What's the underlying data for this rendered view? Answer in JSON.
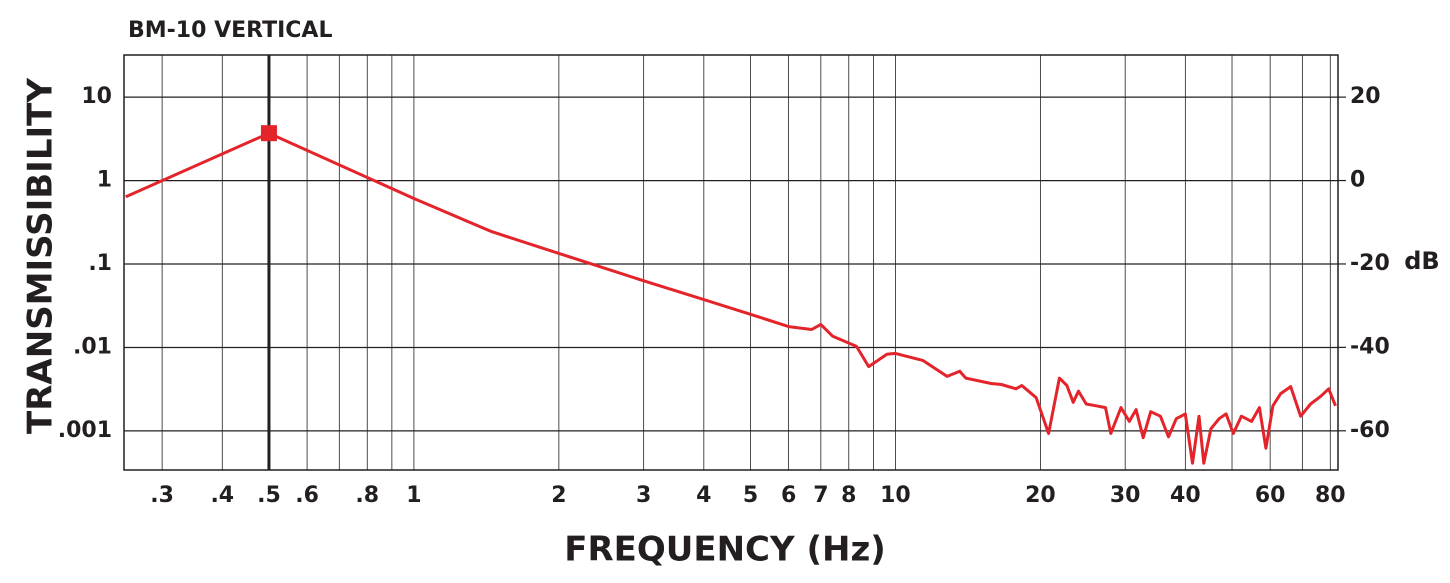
{
  "chart_data": {
    "type": "line",
    "title": "BM-10 VERTICAL",
    "xlabel": "FREQUENCY (Hz)",
    "ylabel": "TRANSMISSIBILITY",
    "y2label": "dB",
    "xscale": "log",
    "yscale": "log",
    "grid": true,
    "xlim": [
      0.25,
      83
    ],
    "ylim": [
      0.00034,
      32
    ],
    "y2lim": [
      -69.4,
      30.1
    ],
    "xticks": [
      {
        "value": 0.3,
        "label": ".3"
      },
      {
        "value": 0.4,
        "label": ".4"
      },
      {
        "value": 0.5,
        "label": ".5"
      },
      {
        "value": 0.6,
        "label": ".6"
      },
      {
        "value": 0.8,
        "label": ".8"
      },
      1,
      2,
      3,
      4,
      5,
      6,
      7,
      8,
      10,
      20,
      30,
      40,
      60,
      80
    ],
    "xminor": [
      0.7,
      0.9,
      9,
      50,
      70
    ],
    "yticks": [
      10,
      1,
      {
        "value": 0.1,
        "label": ".1"
      },
      {
        "value": 0.01,
        "label": ".01"
      },
      {
        "value": 0.001,
        "label": ".001"
      }
    ],
    "y2ticks": [
      20,
      0,
      -20,
      -40,
      -60
    ],
    "x": [
      0.252,
      0.5,
      1,
      1.45,
      2,
      3,
      4,
      5,
      6,
      6.7,
      7,
      7.4,
      8.3,
      8.8,
      9.6,
      10,
      11.4,
      12.8,
      13.6,
      14,
      15.8,
      16.6,
      17.8,
      18.3,
      19.6,
      20.8,
      21.9,
      22.7,
      23.4,
      24,
      24.9,
      26.1,
      27.3,
      28,
      29.4,
      30.6,
      31.6,
      32.7,
      33.9,
      35.5,
      36.9,
      38.3,
      40,
      41.4,
      42.7,
      43.7,
      45.2,
      47,
      48.6,
      50.3,
      52.3,
      54.9,
      57,
      58.8,
      60.8,
      63.1,
      66.2,
      69.4,
      72.8,
      76.4,
      79.4,
      82
    ],
    "series": [
      {
        "name": "BM-10 VERTICAL",
        "color": "#e3242b",
        "values": [
          0.64,
          3.7,
          0.61,
          0.245,
          0.134,
          0.063,
          0.0375,
          0.025,
          0.0178,
          0.0164,
          0.0189,
          0.0137,
          0.0103,
          0.0059,
          0.0083,
          0.0085,
          0.007,
          0.0045,
          0.0052,
          0.0043,
          0.0037,
          0.0036,
          0.0032,
          0.0035,
          0.0025,
          0.00093,
          0.0043,
          0.0035,
          0.0022,
          0.003,
          0.0021,
          0.002,
          0.0019,
          0.00093,
          0.0019,
          0.0013,
          0.0018,
          0.00083,
          0.0017,
          0.0015,
          0.00085,
          0.0014,
          0.0016,
          0.00041,
          0.0015,
          0.00041,
          0.00106,
          0.0014,
          0.0016,
          0.00093,
          0.0015,
          0.0013,
          0.0019,
          0.00062,
          0.002,
          0.0028,
          0.0034,
          0.0015,
          0.0021,
          0.0026,
          0.0032,
          0.002
        ]
      }
    ],
    "marker": {
      "x": 0.5,
      "y": 3.7,
      "color": "#e3242b"
    }
  }
}
